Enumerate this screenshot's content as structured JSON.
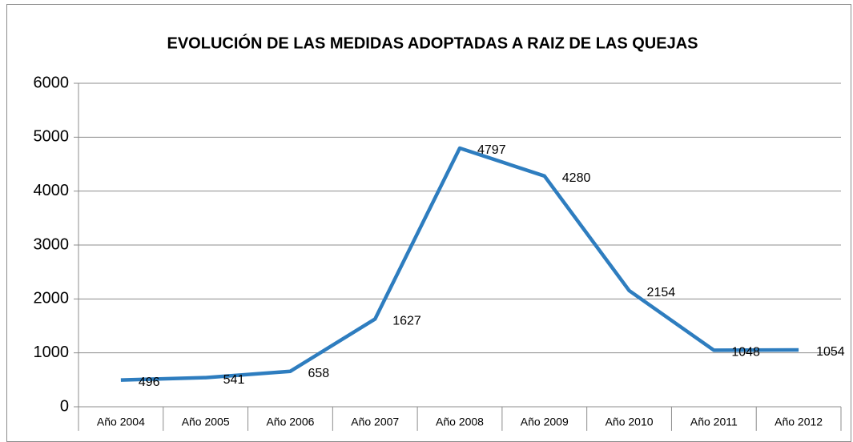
{
  "chart_data": {
    "type": "line",
    "title": "EVOLUCIÓN DE LAS MEDIDAS ADOPTADAS A RAIZ DE LAS QUEJAS",
    "categories": [
      "Año 2004",
      "Año 2005",
      "Año 2006",
      "Año 2007",
      "Año 2008",
      "Año 2009",
      "Año 2010",
      "Año 2011",
      "Año 2012"
    ],
    "values": [
      496,
      541,
      658,
      1627,
      4797,
      4280,
      2154,
      1048,
      1054
    ],
    "color": "#2e7dbf",
    "ylim": [
      0,
      6000
    ],
    "yticks": [
      0,
      1000,
      2000,
      3000,
      4000,
      5000,
      6000
    ],
    "grid": true
  }
}
